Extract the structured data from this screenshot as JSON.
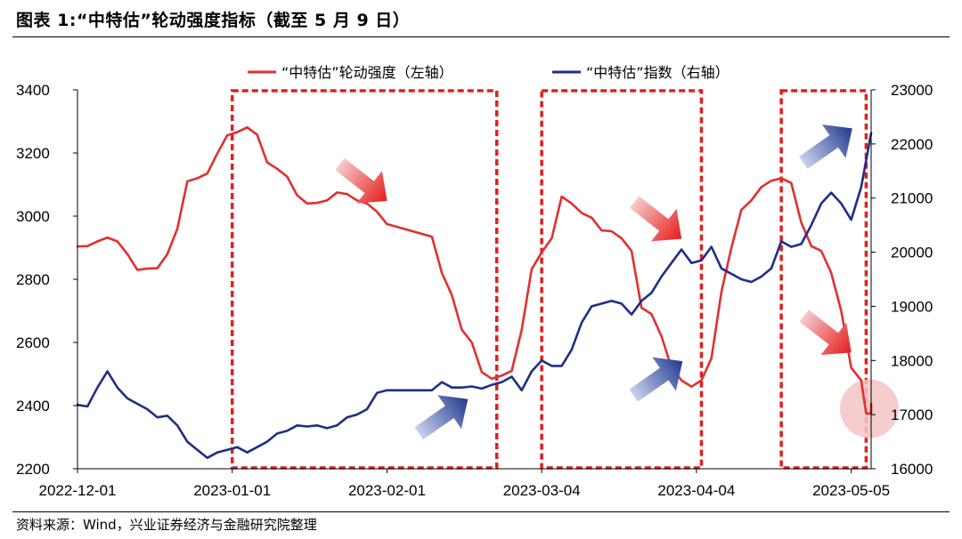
{
  "header": {
    "title": "图表 1:“中特估”轮动强度指标（截至 5 月 9 日）"
  },
  "footer": {
    "source": "资料来源：Wind，兴业证券经济与金融研究院整理"
  },
  "colors": {
    "red": "#e03030",
    "blue": "#1f2e86",
    "box": "#e02020",
    "highlight": "#f3c4c4"
  },
  "chart_data": {
    "type": "line",
    "title": "",
    "x_range": [
      "2022-12-01",
      "2023-05-09"
    ],
    "x_ticks": [
      "2022-12-01",
      "2023-01-01",
      "2023-02-01",
      "2023-03-04",
      "2023-04-04",
      "2023-05-05"
    ],
    "y_left": {
      "range": [
        2200,
        3400
      ],
      "ticks": [
        "3400",
        "3200",
        "3000",
        "2800",
        "2600",
        "2400",
        "2200"
      ]
    },
    "y_right": {
      "range": [
        16000,
        23000
      ],
      "ticks": [
        "23000",
        "22000",
        "21000",
        "20000",
        "19000",
        "18000",
        "17000",
        "16000"
      ]
    },
    "legend_position": "top-center",
    "series": [
      {
        "name": "“中特估”轮动强度（左轴）",
        "axis": "left",
        "color": "#e03030",
        "points": [
          [
            "2022-12-01",
            2904
          ],
          [
            "2022-12-03",
            2905
          ],
          [
            "2022-12-05",
            2920
          ],
          [
            "2022-12-07",
            2932
          ],
          [
            "2022-12-09",
            2920
          ],
          [
            "2022-12-11",
            2880
          ],
          [
            "2022-12-13",
            2830
          ],
          [
            "2022-12-15",
            2834
          ],
          [
            "2022-12-17",
            2835
          ],
          [
            "2022-12-19",
            2880
          ],
          [
            "2022-12-21",
            2960
          ],
          [
            "2022-12-23",
            3110
          ],
          [
            "2022-12-25",
            3120
          ],
          [
            "2022-12-27",
            3135
          ],
          [
            "2022-12-29",
            3198
          ],
          [
            "2022-12-31",
            3256
          ],
          [
            "2023-01-02",
            3266
          ],
          [
            "2023-01-04",
            3281
          ],
          [
            "2023-01-06",
            3258
          ],
          [
            "2023-01-08",
            3170
          ],
          [
            "2023-01-10",
            3150
          ],
          [
            "2023-01-12",
            3125
          ],
          [
            "2023-01-14",
            3066
          ],
          [
            "2023-01-16",
            3040
          ],
          [
            "2023-01-18",
            3042
          ],
          [
            "2023-01-20",
            3050
          ],
          [
            "2023-01-22",
            3075
          ],
          [
            "2023-01-24",
            3070
          ],
          [
            "2023-01-26",
            3050
          ],
          [
            "2023-01-28",
            3040
          ],
          [
            "2023-01-30",
            3014
          ],
          [
            "2023-02-01",
            2975
          ],
          [
            "2023-02-10",
            2935
          ],
          [
            "2023-02-12",
            2820
          ],
          [
            "2023-02-14",
            2750
          ],
          [
            "2023-02-16",
            2640
          ],
          [
            "2023-02-18",
            2600
          ],
          [
            "2023-02-20",
            2506
          ],
          [
            "2023-02-22",
            2485
          ],
          [
            "2023-02-24",
            2495
          ],
          [
            "2023-02-26",
            2510
          ],
          [
            "2023-02-28",
            2640
          ],
          [
            "2023-03-02",
            2832
          ],
          [
            "2023-03-04",
            2885
          ],
          [
            "2023-03-06",
            2930
          ],
          [
            "2023-03-08",
            3062
          ],
          [
            "2023-03-10",
            3040
          ],
          [
            "2023-03-12",
            3010
          ],
          [
            "2023-03-14",
            2995
          ],
          [
            "2023-03-16",
            2955
          ],
          [
            "2023-03-18",
            2952
          ],
          [
            "2023-03-20",
            2930
          ],
          [
            "2023-03-22",
            2890
          ],
          [
            "2023-03-24",
            2710
          ],
          [
            "2023-03-26",
            2690
          ],
          [
            "2023-03-28",
            2620
          ],
          [
            "2023-03-30",
            2520
          ],
          [
            "2023-04-01",
            2480
          ],
          [
            "2023-04-03",
            2460
          ],
          [
            "2023-04-05",
            2480
          ],
          [
            "2023-04-07",
            2550
          ],
          [
            "2023-04-09",
            2760
          ],
          [
            "2023-04-11",
            2900
          ],
          [
            "2023-04-13",
            3020
          ],
          [
            "2023-04-15",
            3050
          ],
          [
            "2023-04-17",
            3092
          ],
          [
            "2023-04-19",
            3112
          ],
          [
            "2023-04-21",
            3120
          ],
          [
            "2023-04-23",
            3105
          ],
          [
            "2023-04-25",
            2980
          ],
          [
            "2023-04-27",
            2905
          ],
          [
            "2023-04-29",
            2890
          ],
          [
            "2023-05-01",
            2820
          ],
          [
            "2023-05-03",
            2700
          ],
          [
            "2023-05-05",
            2520
          ],
          [
            "2023-05-07",
            2480
          ],
          [
            "2023-05-08",
            2375
          ],
          [
            "2023-05-09",
            2375
          ],
          [
            "2023-05-09",
            2405
          ]
        ]
      },
      {
        "name": "“中特估”指数（右轴）",
        "axis": "right",
        "color": "#1f2e86",
        "points": [
          [
            "2022-12-01",
            17180
          ],
          [
            "2022-12-03",
            17150
          ],
          [
            "2022-12-05",
            17500
          ],
          [
            "2022-12-07",
            17800
          ],
          [
            "2022-12-09",
            17500
          ],
          [
            "2022-12-11",
            17300
          ],
          [
            "2022-12-13",
            17200
          ],
          [
            "2022-12-15",
            17100
          ],
          [
            "2022-12-17",
            16950
          ],
          [
            "2022-12-19",
            16980
          ],
          [
            "2022-12-21",
            16800
          ],
          [
            "2022-12-23",
            16500
          ],
          [
            "2022-12-25",
            16350
          ],
          [
            "2022-12-27",
            16200
          ],
          [
            "2022-12-29",
            16300
          ],
          [
            "2022-12-31",
            16350
          ],
          [
            "2023-01-02",
            16400
          ],
          [
            "2023-01-04",
            16300
          ],
          [
            "2023-01-06",
            16400
          ],
          [
            "2023-01-08",
            16500
          ],
          [
            "2023-01-10",
            16650
          ],
          [
            "2023-01-12",
            16700
          ],
          [
            "2023-01-14",
            16800
          ],
          [
            "2023-01-16",
            16780
          ],
          [
            "2023-01-18",
            16800
          ],
          [
            "2023-01-20",
            16750
          ],
          [
            "2023-01-22",
            16800
          ],
          [
            "2023-01-24",
            16950
          ],
          [
            "2023-01-26",
            17000
          ],
          [
            "2023-01-28",
            17100
          ],
          [
            "2023-01-30",
            17400
          ],
          [
            "2023-02-01",
            17450
          ],
          [
            "2023-02-10",
            17450
          ],
          [
            "2023-02-12",
            17600
          ],
          [
            "2023-02-14",
            17500
          ],
          [
            "2023-02-16",
            17500
          ],
          [
            "2023-02-18",
            17520
          ],
          [
            "2023-02-20",
            17480
          ],
          [
            "2023-02-22",
            17550
          ],
          [
            "2023-02-24",
            17600
          ],
          [
            "2023-02-26",
            17700
          ],
          [
            "2023-02-28",
            17450
          ],
          [
            "2023-03-02",
            17800
          ],
          [
            "2023-03-04",
            18000
          ],
          [
            "2023-03-06",
            17900
          ],
          [
            "2023-03-08",
            17900
          ],
          [
            "2023-03-10",
            18200
          ],
          [
            "2023-03-12",
            18700
          ],
          [
            "2023-03-14",
            19000
          ],
          [
            "2023-03-16",
            19050
          ],
          [
            "2023-03-18",
            19100
          ],
          [
            "2023-03-20",
            19050
          ],
          [
            "2023-03-22",
            18850
          ],
          [
            "2023-03-24",
            19100
          ],
          [
            "2023-03-26",
            19250
          ],
          [
            "2023-03-28",
            19550
          ],
          [
            "2023-03-30",
            19800
          ],
          [
            "2023-04-01",
            20050
          ],
          [
            "2023-04-03",
            19800
          ],
          [
            "2023-04-05",
            19850
          ],
          [
            "2023-04-07",
            20100
          ],
          [
            "2023-04-09",
            19700
          ],
          [
            "2023-04-11",
            19600
          ],
          [
            "2023-04-13",
            19500
          ],
          [
            "2023-04-15",
            19450
          ],
          [
            "2023-04-17",
            19550
          ],
          [
            "2023-04-19",
            19700
          ],
          [
            "2023-04-21",
            20200
          ],
          [
            "2023-04-23",
            20100
          ],
          [
            "2023-04-25",
            20150
          ],
          [
            "2023-04-27",
            20500
          ],
          [
            "2023-04-29",
            20900
          ],
          [
            "2023-05-01",
            21100
          ],
          [
            "2023-05-03",
            20900
          ],
          [
            "2023-05-05",
            20600
          ],
          [
            "2023-05-07",
            21200
          ],
          [
            "2023-05-08",
            21700
          ],
          [
            "2023-05-09",
            22200
          ]
        ]
      }
    ],
    "annotations": {
      "boxes": [
        [
          "2023-01-01",
          "2023-02-23"
        ],
        [
          "2023-03-04",
          "2023-04-05"
        ],
        [
          "2023-04-21",
          "2023-05-08"
        ]
      ],
      "arrows": [
        {
          "direction": "down",
          "color": "red",
          "at": [
            "2023-01-27",
            3110
          ]
        },
        {
          "direction": "up",
          "color": "blue",
          "at": [
            "2023-02-12",
            16950
          ]
        },
        {
          "direction": "down",
          "color": "red",
          "at": [
            "2023-03-27",
            2990
          ]
        },
        {
          "direction": "up",
          "color": "blue",
          "at": [
            "2023-03-27",
            17650
          ]
        },
        {
          "direction": "up",
          "color": "blue",
          "at": [
            "2023-04-30",
            21950
          ]
        },
        {
          "direction": "down",
          "color": "red",
          "at": [
            "2023-04-30",
            2630
          ]
        }
      ],
      "highlight": {
        "shape": "circle",
        "at": [
          "2023-05-09",
          2390
        ]
      }
    }
  }
}
